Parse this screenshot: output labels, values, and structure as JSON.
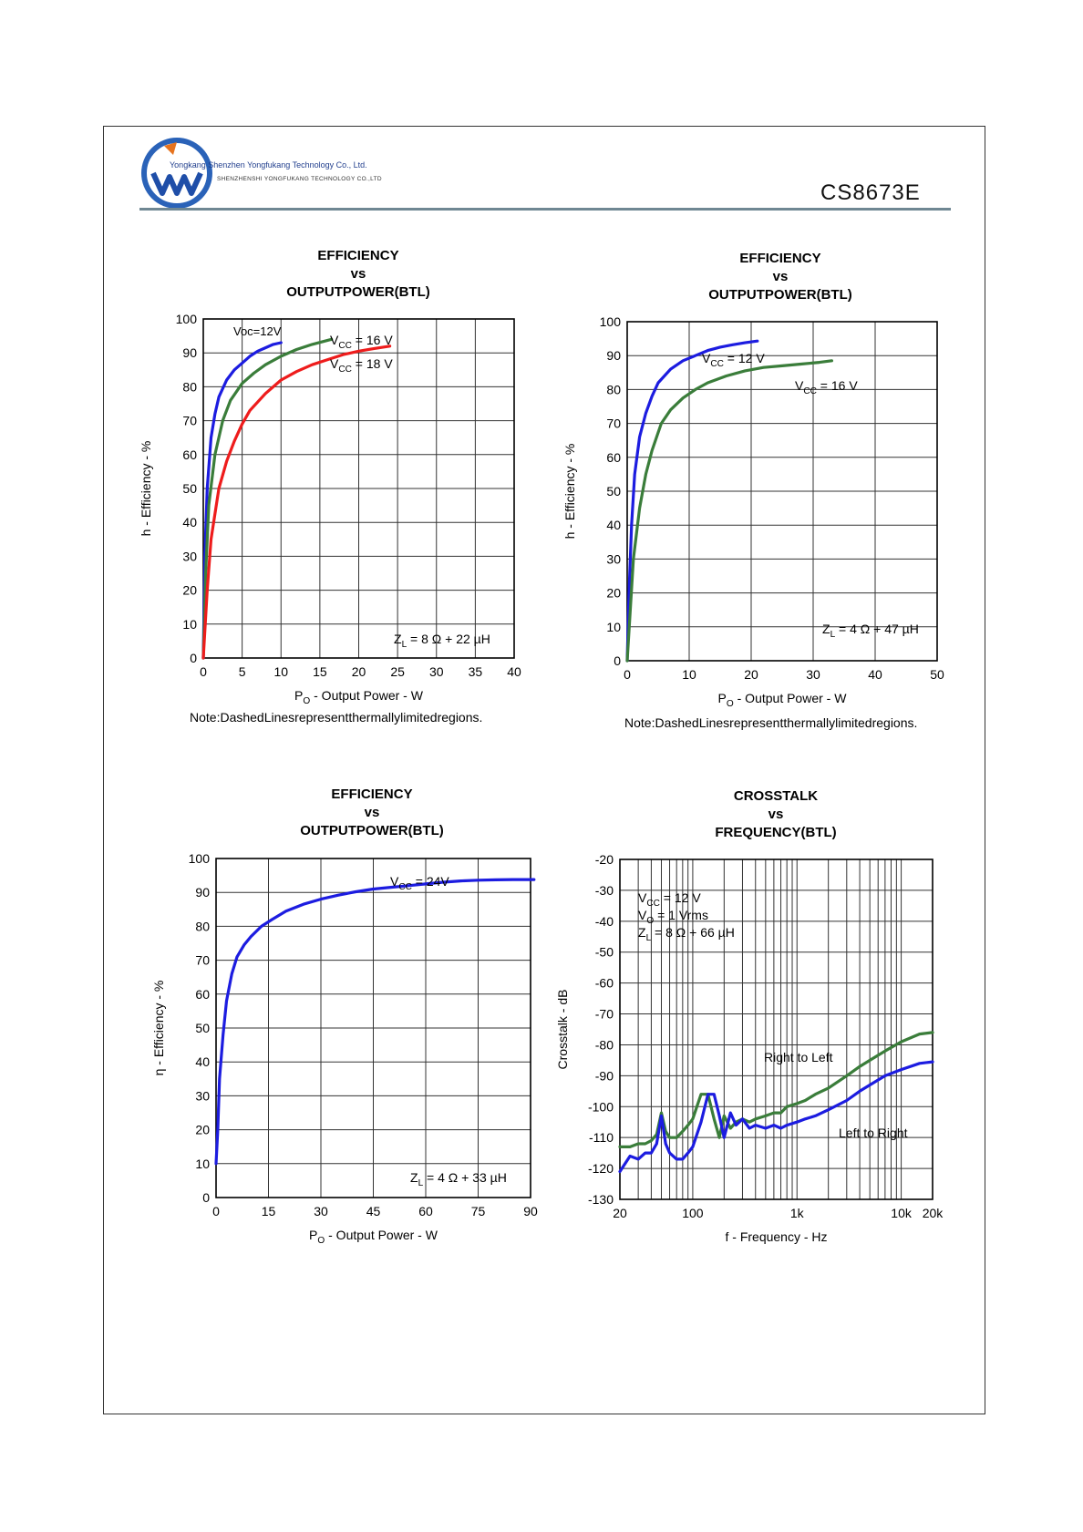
{
  "header": {
    "company_cn": "Yongkang Shenzhen Yongfukang Technology Co., Ltd.",
    "company_en": "SHENZHENSHI YONGFUKANG TECHNOLOGY CO.,LTD",
    "part_number": "CS8673E",
    "logo": "yongfukang-logo"
  },
  "chart_data": [
    {
      "type": "line",
      "title": [
        "EFFICIENCY",
        "vs",
        "OUTPUTPOWER(BTL)"
      ],
      "xlabel": "PO - Output Power - W",
      "ylabel": "h - Efficiency - %",
      "xlim": [
        0,
        40
      ],
      "ylim": [
        0,
        100
      ],
      "xticks": [
        "0",
        "5",
        "10",
        "15",
        "20",
        "25",
        "30",
        "35",
        "40"
      ],
      "yticks": [
        "0",
        "10",
        "20",
        "30",
        "40",
        "50",
        "60",
        "70",
        "80",
        "90",
        "100"
      ],
      "grid": true,
      "note": "Note:DashedLinesrepresentthermallylimitedregions.",
      "annotations": [
        "Voc=12V",
        "VCC = 16 V",
        "VCC = 18 V",
        "ZL = 8 Ω + 22 µH"
      ],
      "series": [
        {
          "name": "Voc=12V",
          "color": "#1c1ce0",
          "x": [
            0,
            0.2,
            0.5,
            1,
            1.5,
            2,
            3,
            4,
            5,
            6,
            7,
            8,
            9,
            10
          ],
          "y": [
            0,
            30,
            50,
            65,
            72,
            77,
            82,
            85,
            87,
            89,
            90.5,
            91.5,
            92.5,
            93
          ]
        },
        {
          "name": "VCC = 16 V",
          "color": "#3a7d3a",
          "x": [
            0,
            0.3,
            0.7,
            1.5,
            2.5,
            3.5,
            5,
            6.5,
            8,
            10,
            12,
            14,
            16.5
          ],
          "y": [
            0,
            25,
            45,
            60,
            70,
            76,
            81,
            84,
            86.5,
            89,
            91,
            92.5,
            94
          ]
        },
        {
          "name": "VCC = 18 V",
          "color": "#ee1c1c",
          "x": [
            0,
            0.5,
            1,
            2,
            3,
            4,
            5,
            6,
            8,
            10,
            12,
            14,
            16,
            18,
            20,
            22,
            24
          ],
          "y": [
            0,
            20,
            35,
            50,
            58,
            64,
            69,
            73,
            78,
            82,
            84.5,
            86.5,
            88,
            89.5,
            90.5,
            91.3,
            92
          ]
        }
      ]
    },
    {
      "type": "line",
      "title": [
        "EFFICIENCY",
        "vs",
        "OUTPUTPOWER(BTL)"
      ],
      "xlabel": "PO - Output Power - W",
      "ylabel": "h - Efficiency - %",
      "xlim": [
        0,
        50
      ],
      "ylim": [
        0,
        100
      ],
      "xticks": [
        "0",
        "10",
        "20",
        "30",
        "40",
        "50"
      ],
      "yticks": [
        "0",
        "10",
        "20",
        "30",
        "40",
        "50",
        "60",
        "70",
        "80",
        "90",
        "100"
      ],
      "grid": true,
      "note": "Note:DashedLinesrepresentthermallylimitedregions.",
      "annotations": [
        "VCC = 12 V",
        "VCC = 16 V",
        "ZL = 4 Ω + 47 µH"
      ],
      "series": [
        {
          "name": "VCC = 12 V",
          "color": "#1c1ce0",
          "x": [
            0,
            0.3,
            0.7,
            1.2,
            2,
            3,
            4,
            5,
            7,
            9,
            11,
            13,
            15,
            17,
            19,
            21
          ],
          "y": [
            0,
            20,
            40,
            55,
            66,
            73,
            78,
            82,
            86,
            88.5,
            90,
            91.5,
            92.5,
            93.2,
            93.8,
            94.3
          ]
        },
        {
          "name": "VCC = 16 V",
          "color": "#3a7d3a",
          "x": [
            0,
            0.5,
            1,
            2,
            3,
            4,
            5.5,
            7,
            9,
            11,
            13,
            16,
            19,
            22,
            25,
            28,
            31,
            33
          ],
          "y": [
            0,
            15,
            30,
            45,
            55,
            62,
            70,
            74,
            77.5,
            80,
            82,
            84,
            85.5,
            86.5,
            87,
            87.5,
            88,
            88.5
          ]
        }
      ]
    },
    {
      "type": "line",
      "title": [
        "EFFICIENCY",
        "vs",
        "OUTPUTPOWER(BTL)"
      ],
      "xlabel": "PO - Output Power - W",
      "ylabel": "η - Efficiency - %",
      "xlim": [
        0,
        90
      ],
      "ylim": [
        0,
        100
      ],
      "xticks": [
        "0",
        "15",
        "30",
        "45",
        "60",
        "75",
        "90"
      ],
      "yticks": [
        "0",
        "10",
        "20",
        "30",
        "40",
        "50",
        "60",
        "70",
        "80",
        "90",
        "100"
      ],
      "grid": true,
      "annotations": [
        "VCC = 24V",
        "ZL = 4 Ω + 33 µH"
      ],
      "series": [
        {
          "name": "VCC = 24V",
          "color": "#1c1ce0",
          "x": [
            0,
            0.5,
            1,
            2,
            3,
            4.5,
            6,
            8,
            10,
            13,
            16,
            20,
            25,
            30,
            35,
            40,
            45,
            50,
            55,
            60,
            65,
            70,
            75,
            80,
            85,
            91
          ],
          "y": [
            10,
            20,
            35,
            48,
            58,
            66,
            71,
            74.5,
            77,
            80,
            82,
            84.5,
            86.5,
            88,
            89.2,
            90.2,
            91,
            91.5,
            92,
            92.5,
            93,
            93.4,
            93.6,
            93.7,
            93.8,
            93.8
          ]
        }
      ]
    },
    {
      "type": "line",
      "title": [
        "CROSSTALK",
        "vs",
        "FREQUENCY(BTL)"
      ],
      "xlabel": "f - Frequency - Hz",
      "ylabel": "Crosstalk - dB",
      "xscale": "log",
      "xlim": [
        20,
        20000
      ],
      "ylim": [
        -130,
        -20
      ],
      "xticks": [
        "20",
        "100",
        "1k",
        "10k",
        "20k"
      ],
      "yticks": [
        "-20",
        "-30",
        "-40",
        "-50",
        "-60",
        "-70",
        "-80",
        "-90",
        "-100",
        "-110",
        "-120",
        "-130"
      ],
      "grid": true,
      "annotations": [
        "VCC = 12 V",
        "VO = 1 Vrms",
        "ZL = 8 Ω + 66 µH",
        "Right to Left",
        "Left to Right"
      ],
      "series": [
        {
          "name": "Right to Left",
          "color": "#3a7d3a",
          "x": [
            20,
            25,
            30,
            35,
            40,
            45,
            50,
            55,
            60,
            70,
            80,
            90,
            100,
            120,
            140,
            160,
            180,
            200,
            230,
            260,
            300,
            350,
            400,
            500,
            600,
            700,
            800,
            1000,
            1200,
            1500,
            2000,
            3000,
            4000,
            5000,
            7000,
            10000,
            15000,
            20000
          ],
          "y": [
            -113,
            -113,
            -112,
            -112,
            -111,
            -109,
            -102,
            -108,
            -110,
            -110,
            -108,
            -106,
            -104,
            -96,
            -96,
            -104,
            -110,
            -103,
            -107,
            -105,
            -104,
            -105,
            -104,
            -103,
            -102,
            -102,
            -100,
            -99,
            -98,
            -96,
            -94,
            -90,
            -87,
            -85,
            -82,
            -79,
            -76.5,
            -76
          ]
        },
        {
          "name": "Left to Right",
          "color": "#1c1ce0",
          "x": [
            20,
            25,
            30,
            35,
            40,
            45,
            50,
            55,
            60,
            70,
            80,
            90,
            100,
            120,
            140,
            160,
            180,
            200,
            230,
            260,
            300,
            350,
            400,
            500,
            600,
            700,
            800,
            1000,
            1200,
            1500,
            2000,
            3000,
            4000,
            5000,
            7000,
            10000,
            15000,
            20000
          ],
          "y": [
            -121,
            -116,
            -117,
            -115,
            -115,
            -112,
            -103,
            -112,
            -115,
            -117,
            -117,
            -115,
            -113,
            -105,
            -96,
            -96,
            -103,
            -110,
            -102,
            -106,
            -104,
            -107,
            -106,
            -107,
            -106,
            -107,
            -106,
            -105,
            -104,
            -103,
            -101,
            -98,
            -95,
            -93,
            -90,
            -88,
            -86,
            -85.5
          ]
        }
      ]
    }
  ],
  "charts": [
    {
      "title": [
        "EFFICIENCY",
        "vs",
        "OUTPUTPOWER(BTL)"
      ],
      "note": "Note:DashedLinesrepresentthermallylimitedregions."
    },
    {
      "title": [
        "EFFICIENCY",
        "vs",
        "OUTPUTPOWER(BTL)"
      ],
      "note": "Note:DashedLinesrepresentthermallylimitedregions."
    },
    {
      "title": [
        "EFFICIENCY",
        "vs",
        "OUTPUTPOWER(BTL)"
      ]
    },
    {
      "title": [
        "CROSSTALK",
        "vs",
        "FREQUENCY(BTL)"
      ]
    }
  ]
}
